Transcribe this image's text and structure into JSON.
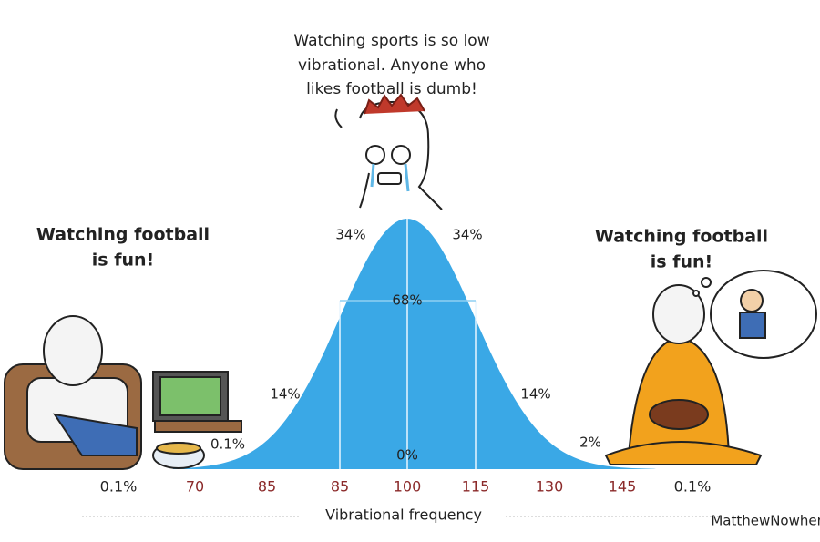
{
  "speech": {
    "lines": [
      "Watching sports is so low",
      "vibrational. Anyone who",
      "likes football is dumb!"
    ]
  },
  "left_caption": {
    "lines": [
      "Watching football",
      "is fun!"
    ]
  },
  "right_caption": {
    "lines": [
      "Watching football",
      "is fun!"
    ]
  },
  "curve_labels": [
    "34%",
    "34%",
    "68%",
    "14%",
    "14%",
    "0.1%",
    "2%",
    "0%"
  ],
  "axis": {
    "labels": [
      "0.1%",
      "70",
      "85",
      "85",
      "100",
      "115",
      "130",
      "145",
      "0.1%"
    ],
    "title": "Vibrational frequency"
  },
  "watermark": "MatthewNowhere"
}
